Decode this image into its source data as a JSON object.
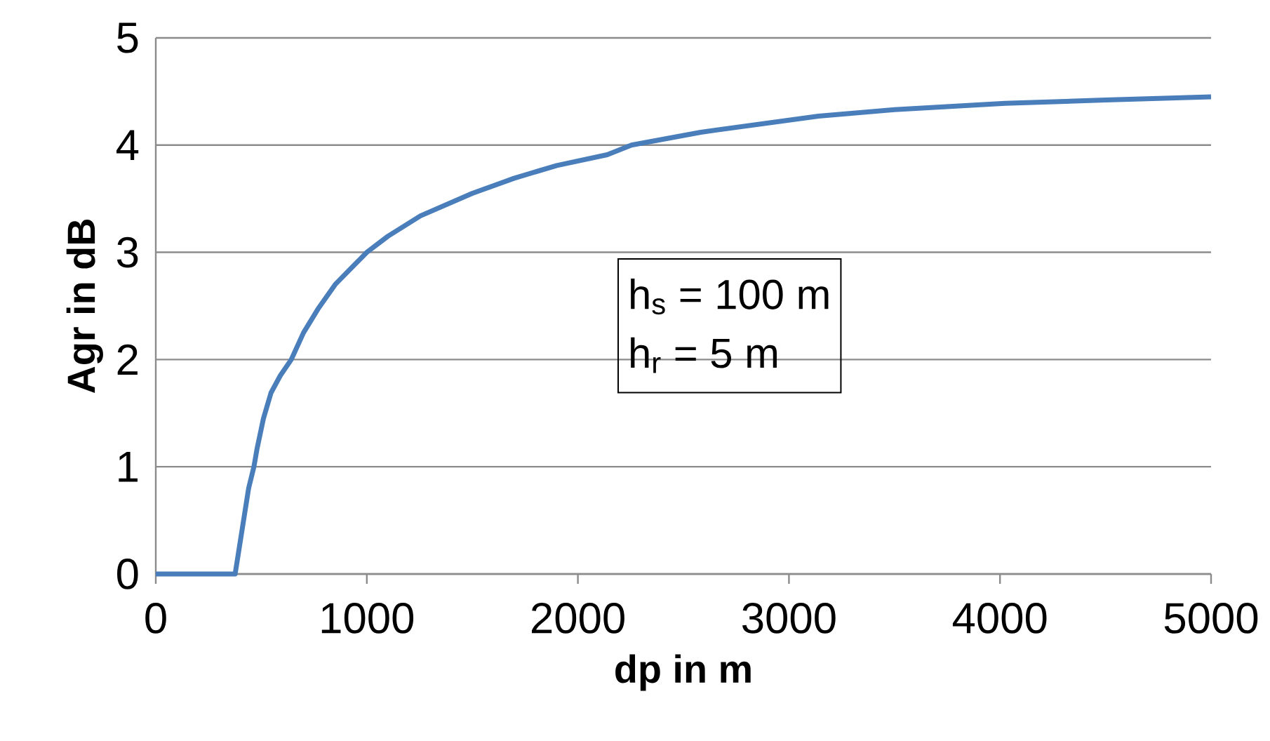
{
  "chart_data": {
    "type": "line",
    "xlabel": "dp in m",
    "ylabel": "Agr in dB",
    "annotations": [
      "h$_{s}$ = 100 m",
      "h$_{r}$ = 5 m"
    ],
    "x": [
      0,
      376,
      400,
      420,
      440,
      465,
      480,
      510,
      546,
      590,
      642,
      700,
      768,
      850,
      1000,
      1100,
      1254,
      1500,
      1697,
      1900,
      2139,
      2254,
      2582,
      3140,
      3500,
      4024,
      4500,
      5000
    ],
    "series": [
      {
        "color": "#4a7ebb",
        "values": [
          0,
          0,
          0.3,
          0.55,
          0.8,
          1,
          1.17,
          1.45,
          1.69,
          1.85,
          2,
          2.25,
          2.47,
          2.7,
          3,
          3.15,
          3.34,
          3.55,
          3.69,
          3.81,
          3.91,
          4.0,
          4.12,
          4.27,
          4.33,
          4.39,
          4.42,
          4.45
        ]
      }
    ],
    "xlim": [
      0,
      5000
    ],
    "ylim": [
      0,
      5
    ],
    "xticks": [
      0,
      1000,
      2000,
      3000,
      4000,
      5000
    ],
    "yticks": [
      0,
      1,
      2,
      3,
      4,
      5
    ],
    "grid": "y",
    "marker": "none",
    "line_style": "solid"
  }
}
